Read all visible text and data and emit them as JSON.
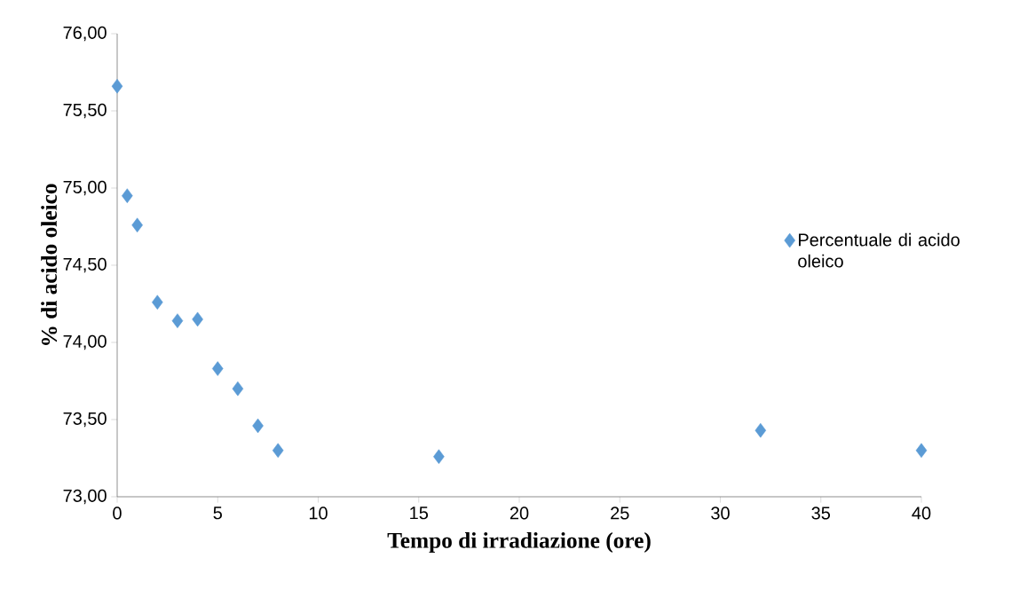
{
  "chart_data": {
    "type": "scatter",
    "xlabel": "Tempo di irradiazione (ore)",
    "ylabel": "% di acido oleico",
    "x": [
      0,
      0.5,
      1,
      2,
      3,
      4,
      5,
      6,
      7,
      8,
      16,
      32,
      40
    ],
    "series": [
      {
        "name": "Percentuale di acido oleico",
        "color": "#5b9bd5",
        "values": [
          75.66,
          74.95,
          74.76,
          74.26,
          74.14,
          74.15,
          73.83,
          73.7,
          73.46,
          73.3,
          73.26,
          73.43,
          73.3
        ]
      }
    ],
    "xlim": [
      0,
      40
    ],
    "xticks": [
      0,
      5,
      10,
      15,
      20,
      25,
      30,
      35,
      40
    ],
    "ylim": [
      73,
      76
    ],
    "yticks": [
      {
        "value": 73,
        "label": "73,00"
      },
      {
        "value": 73.5,
        "label": "73,50"
      },
      {
        "value": 74,
        "label": "74,00"
      },
      {
        "value": 74.5,
        "label": "74,50"
      },
      {
        "value": 75,
        "label": "75,00"
      },
      {
        "value": 75.5,
        "label": "75,50"
      },
      {
        "value": 76,
        "label": "76,00"
      }
    ],
    "grid": false,
    "legend": "right",
    "marker": "diamond"
  }
}
